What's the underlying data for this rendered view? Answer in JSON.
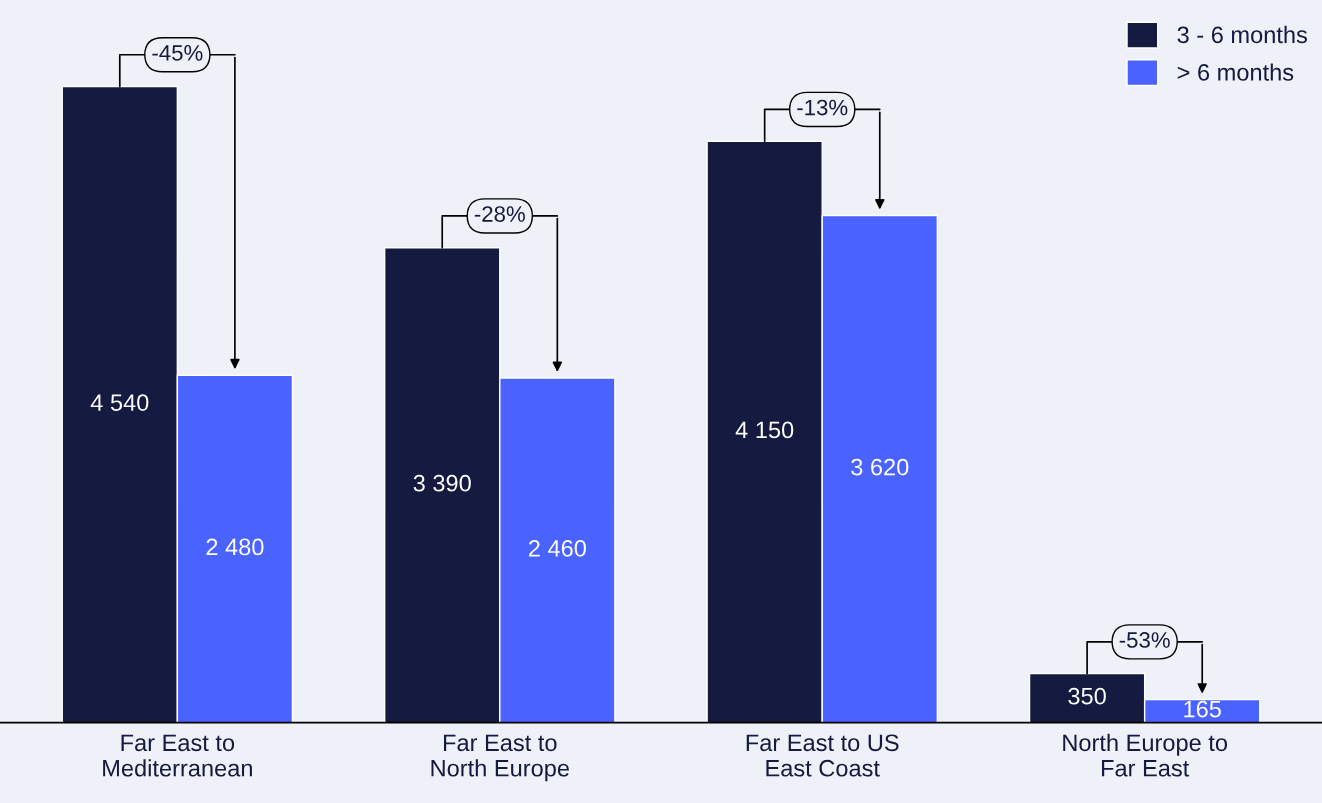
{
  "chart_data": {
    "type": "bar",
    "categories": [
      "Far East to\nMediterranean",
      "Far East to\nNorth Europe",
      "Far East to US\nEast Coast",
      "North Europe to\nFar East"
    ],
    "series": [
      {
        "name": "3 - 6 months",
        "color": "#141a40",
        "values": [
          4540,
          3390,
          4150,
          350
        ],
        "value_labels": [
          "4 540",
          "3 390",
          "4 150",
          "350"
        ]
      },
      {
        "name": "> 6 months",
        "color": "#4a63ff",
        "values": [
          2480,
          2460,
          3620,
          165
        ],
        "value_labels": [
          "2 480",
          "2 460",
          "3 620",
          "165"
        ]
      }
    ],
    "annotations": [
      {
        "text": "-45%",
        "x": "Far East to\nMediterranean",
        "y": 4540
      },
      {
        "text": "-28%",
        "x": "Far East to\nNorth Europe",
        "y": 3390
      },
      {
        "text": "-13%",
        "x": "Far East to US\nEast Coast",
        "y": 4150
      },
      {
        "text": "-53%",
        "x": "North Europe to\nFar East",
        "y": 350
      }
    ],
    "legend": "top right",
    "grid": false
  }
}
